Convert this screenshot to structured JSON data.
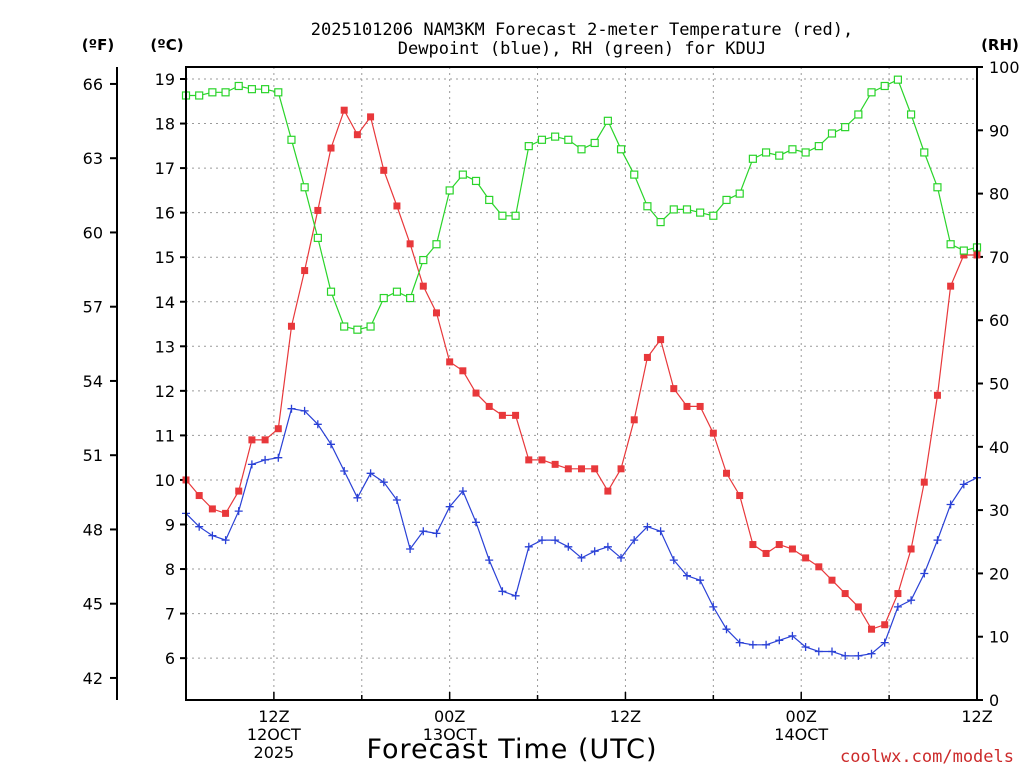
{
  "chart_data": {
    "type": "line",
    "title_line1": "2025101206 NAM3KM Forecast 2-meter Temperature (red),",
    "title_line2": "Dewpoint (blue), RH (green) for KDUJ",
    "xlabel": "Forecast Time (UTC)",
    "credit": "coolwx.com/models",
    "units": {
      "fahrenheit": "(ºF)",
      "celsius": "(ºC)",
      "rh": "(RH)"
    },
    "x_range_hours": [
      6,
      60
    ],
    "x_ticks": [
      {
        "hour": 12,
        "lines": [
          "12Z",
          "12OCT",
          "2025"
        ]
      },
      {
        "hour": 24,
        "lines": [
          "00Z",
          "13OCT"
        ]
      },
      {
        "hour": 36,
        "lines": [
          "12Z"
        ]
      },
      {
        "hour": 48,
        "lines": [
          "00Z",
          "14OCT"
        ]
      },
      {
        "hour": 60,
        "lines": [
          "12Z"
        ]
      }
    ],
    "y_left_celsius": {
      "range": [
        5.0,
        19.3
      ],
      "ticks": [
        "6",
        "7",
        "8",
        "9",
        "10",
        "11",
        "12",
        "13",
        "14",
        "15",
        "16",
        "17",
        "18",
        "19"
      ]
    },
    "y_left_fahrenheit": {
      "ticks": [
        "42",
        "45",
        "48",
        "51",
        "54",
        "57",
        "60",
        "63",
        "66"
      ]
    },
    "y_right_rh": {
      "range": [
        0,
        100
      ],
      "ticks": [
        "0",
        "10",
        "20",
        "30",
        "40",
        "50",
        "60",
        "70",
        "80",
        "90",
        "100"
      ]
    },
    "series": [
      {
        "name": "Temperature",
        "axis": "celsius",
        "color": "#e8383b",
        "marker": "filled-square",
        "values": [
          10.0,
          9.65,
          9.35,
          9.25,
          9.75,
          10.9,
          10.9,
          11.15,
          13.45,
          14.7,
          16.05,
          17.45,
          18.3,
          17.75,
          18.15,
          16.95,
          16.15,
          15.3,
          14.35,
          13.75,
          12.65,
          12.45,
          11.95,
          11.65,
          11.45,
          11.45,
          10.45,
          10.45,
          10.35,
          10.25,
          10.25,
          10.25,
          9.75,
          10.25,
          11.35,
          12.75,
          13.15,
          12.05,
          11.65,
          11.65,
          11.05,
          10.15,
          9.65,
          8.55,
          8.35,
          8.55,
          8.45,
          8.25,
          8.05,
          7.75,
          7.45,
          7.15,
          6.65,
          6.75,
          7.45,
          8.45,
          9.95,
          11.9,
          14.35,
          15.05,
          15.05
        ]
      },
      {
        "name": "Dewpoint",
        "axis": "celsius",
        "color": "#2a41d6",
        "marker": "plus",
        "values": [
          9.25,
          8.95,
          8.75,
          8.65,
          9.3,
          10.35,
          10.45,
          10.5,
          11.6,
          11.55,
          11.25,
          10.8,
          10.2,
          9.6,
          10.15,
          9.95,
          9.55,
          8.45,
          8.85,
          8.8,
          9.4,
          9.75,
          9.05,
          8.2,
          7.5,
          7.4,
          8.5,
          8.65,
          8.65,
          8.5,
          8.25,
          8.4,
          8.5,
          8.25,
          8.65,
          8.95,
          8.85,
          8.2,
          7.85,
          7.75,
          7.15,
          6.65,
          6.35,
          6.3,
          6.3,
          6.4,
          6.5,
          6.25,
          6.15,
          6.15,
          6.05,
          6.05,
          6.1,
          6.35,
          7.15,
          7.3,
          7.9,
          8.65,
          9.45,
          9.9,
          10.05
        ]
      },
      {
        "name": "Relative Humidity",
        "axis": "rh",
        "color": "#2ad42a",
        "marker": "open-square",
        "values": [
          95.5,
          95.5,
          96,
          96,
          97,
          96.5,
          96.5,
          96,
          88.5,
          81,
          73,
          64.5,
          59,
          58.5,
          59,
          63.5,
          64.5,
          63.5,
          69.5,
          72,
          80.5,
          83,
          82,
          79,
          76.5,
          76.5,
          87.5,
          88.5,
          89,
          88.5,
          87,
          88,
          91.5,
          87,
          83,
          78,
          75.5,
          77.5,
          77.5,
          77,
          76.5,
          79,
          80,
          85.5,
          86.5,
          86,
          87,
          86.5,
          87.5,
          89.5,
          90.5,
          92.5,
          96,
          97,
          98,
          92.5,
          86.5,
          81,
          72,
          71,
          71.5
        ]
      }
    ]
  }
}
